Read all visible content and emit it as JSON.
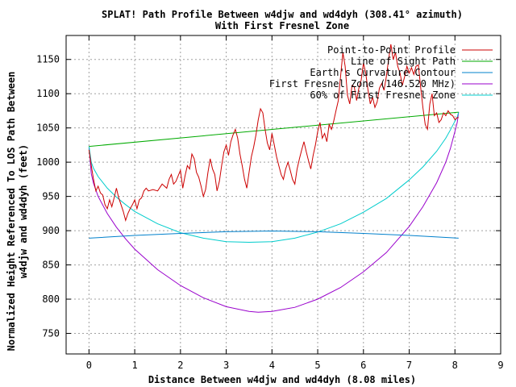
{
  "chart_data": {
    "type": "line",
    "title_line1": "SPLAT! Path Profile Between w4djw and wd4dyh (308.41° azimuth)",
    "title_line2": "With First Fresnel Zone",
    "xlabel": "Distance Between w4djw and wd4dyh (8.08 miles)",
    "ylabel_line1": "Normalized Height Referenced To LOS Path Between",
    "ylabel_line2": "w4djw and wd4dyh (feet)",
    "xlim": [
      -0.5,
      9
    ],
    "ylim": [
      720,
      1185
    ],
    "xticks": [
      0,
      1,
      2,
      3,
      4,
      5,
      6,
      7,
      8,
      9
    ],
    "yticks": [
      750,
      800,
      850,
      900,
      950,
      1000,
      1050,
      1100,
      1150
    ],
    "grid": true,
    "legend_position": "top-right",
    "series": [
      {
        "name": "Point-to-Point Profile",
        "color": "#cc0000",
        "points": [
          [
            0.0,
            1018
          ],
          [
            0.05,
            995
          ],
          [
            0.1,
            975
          ],
          [
            0.15,
            958
          ],
          [
            0.2,
            965
          ],
          [
            0.25,
            955
          ],
          [
            0.3,
            952
          ],
          [
            0.35,
            938
          ],
          [
            0.4,
            932
          ],
          [
            0.45,
            945
          ],
          [
            0.5,
            935
          ],
          [
            0.55,
            948
          ],
          [
            0.6,
            962
          ],
          [
            0.65,
            948
          ],
          [
            0.7,
            938
          ],
          [
            0.75,
            928
          ],
          [
            0.8,
            915
          ],
          [
            0.85,
            925
          ],
          [
            0.9,
            932
          ],
          [
            0.95,
            938
          ],
          [
            1.0,
            945
          ],
          [
            1.05,
            932
          ],
          [
            1.1,
            945
          ],
          [
            1.15,
            948
          ],
          [
            1.2,
            958
          ],
          [
            1.25,
            962
          ],
          [
            1.3,
            958
          ],
          [
            1.4,
            960
          ],
          [
            1.5,
            958
          ],
          [
            1.6,
            968
          ],
          [
            1.7,
            962
          ],
          [
            1.75,
            975
          ],
          [
            1.8,
            982
          ],
          [
            1.85,
            968
          ],
          [
            1.9,
            972
          ],
          [
            1.95,
            980
          ],
          [
            2.0,
            988
          ],
          [
            2.05,
            962
          ],
          [
            2.1,
            980
          ],
          [
            2.15,
            995
          ],
          [
            2.2,
            990
          ],
          [
            2.25,
            1012
          ],
          [
            2.3,
            1005
          ],
          [
            2.35,
            985
          ],
          [
            2.4,
            978
          ],
          [
            2.45,
            965
          ],
          [
            2.5,
            950
          ],
          [
            2.55,
            960
          ],
          [
            2.6,
            985
          ],
          [
            2.65,
            1005
          ],
          [
            2.7,
            990
          ],
          [
            2.75,
            982
          ],
          [
            2.8,
            958
          ],
          [
            2.85,
            972
          ],
          [
            2.9,
            995
          ],
          [
            2.95,
            1015
          ],
          [
            3.0,
            1025
          ],
          [
            3.05,
            1010
          ],
          [
            3.1,
            1030
          ],
          [
            3.15,
            1040
          ],
          [
            3.2,
            1048
          ],
          [
            3.25,
            1035
          ],
          [
            3.3,
            1012
          ],
          [
            3.35,
            995
          ],
          [
            3.4,
            975
          ],
          [
            3.45,
            962
          ],
          [
            3.5,
            985
          ],
          [
            3.55,
            1008
          ],
          [
            3.6,
            1022
          ],
          [
            3.65,
            1040
          ],
          [
            3.7,
            1062
          ],
          [
            3.75,
            1078
          ],
          [
            3.8,
            1072
          ],
          [
            3.85,
            1048
          ],
          [
            3.9,
            1028
          ],
          [
            3.95,
            1018
          ],
          [
            4.0,
            1042
          ],
          [
            4.05,
            1025
          ],
          [
            4.1,
            1008
          ],
          [
            4.15,
            995
          ],
          [
            4.2,
            982
          ],
          [
            4.25,
            975
          ],
          [
            4.3,
            990
          ],
          [
            4.35,
            1000
          ],
          [
            4.4,
            988
          ],
          [
            4.45,
            975
          ],
          [
            4.5,
            968
          ],
          [
            4.55,
            990
          ],
          [
            4.6,
            1005
          ],
          [
            4.65,
            1018
          ],
          [
            4.7,
            1030
          ],
          [
            4.75,
            1015
          ],
          [
            4.8,
            1002
          ],
          [
            4.85,
            990
          ],
          [
            4.9,
            1010
          ],
          [
            4.95,
            1025
          ],
          [
            5.0,
            1045
          ],
          [
            5.05,
            1058
          ],
          [
            5.1,
            1035
          ],
          [
            5.15,
            1042
          ],
          [
            5.2,
            1030
          ],
          [
            5.25,
            1055
          ],
          [
            5.3,
            1048
          ],
          [
            5.35,
            1060
          ],
          [
            5.4,
            1075
          ],
          [
            5.45,
            1090
          ],
          [
            5.5,
            1125
          ],
          [
            5.55,
            1160
          ],
          [
            5.6,
            1140
          ],
          [
            5.65,
            1098
          ],
          [
            5.7,
            1085
          ],
          [
            5.75,
            1112
          ],
          [
            5.8,
            1110
          ],
          [
            5.85,
            1090
          ],
          [
            5.9,
            1108
          ],
          [
            5.95,
            1120
          ],
          [
            6.0,
            1145
          ],
          [
            6.05,
            1130
          ],
          [
            6.1,
            1105
          ],
          [
            6.15,
            1085
          ],
          [
            6.2,
            1095
          ],
          [
            6.25,
            1080
          ],
          [
            6.3,
            1088
          ],
          [
            6.35,
            1108
          ],
          [
            6.4,
            1115
          ],
          [
            6.45,
            1105
          ],
          [
            6.5,
            1125
          ],
          [
            6.55,
            1150
          ],
          [
            6.6,
            1172
          ],
          [
            6.65,
            1150
          ],
          [
            6.7,
            1160
          ],
          [
            6.75,
            1140
          ],
          [
            6.8,
            1130
          ],
          [
            6.85,
            1112
          ],
          [
            6.9,
            1125
          ],
          [
            6.95,
            1140
          ],
          [
            7.0,
            1130
          ],
          [
            7.05,
            1138
          ],
          [
            7.1,
            1128
          ],
          [
            7.15,
            1140
          ],
          [
            7.2,
            1142
          ],
          [
            7.25,
            1110
          ],
          [
            7.3,
            1080
          ],
          [
            7.35,
            1055
          ],
          [
            7.4,
            1048
          ],
          [
            7.45,
            1085
          ],
          [
            7.5,
            1100
          ],
          [
            7.55,
            1068
          ],
          [
            7.6,
            1072
          ],
          [
            7.65,
            1058
          ],
          [
            7.7,
            1062
          ],
          [
            7.75,
            1072
          ],
          [
            7.8,
            1068
          ],
          [
            7.85,
            1075
          ],
          [
            7.9,
            1070
          ],
          [
            7.95,
            1068
          ],
          [
            8.0,
            1062
          ],
          [
            8.05,
            1065
          ],
          [
            8.08,
            1065
          ]
        ]
      },
      {
        "name": "Line of Sight Path",
        "color": "#00aa00",
        "points": [
          [
            0,
            1023
          ],
          [
            8.08,
            1073
          ]
        ]
      },
      {
        "name": "Earth's Curvature Contour",
        "color": "#0080cc",
        "points": [
          [
            0,
            889
          ],
          [
            1,
            893
          ],
          [
            2,
            896
          ],
          [
            3,
            898.5
          ],
          [
            4,
            899.5
          ],
          [
            5,
            898.5
          ],
          [
            6,
            896
          ],
          [
            7,
            893
          ],
          [
            8.08,
            889
          ]
        ]
      },
      {
        "name": "First Fresnel Zone (146.520 MHz)",
        "color": "#9900cc",
        "points": [
          [
            0,
            1023
          ],
          [
            0.05,
            983
          ],
          [
            0.1,
            969
          ],
          [
            0.2,
            950
          ],
          [
            0.4,
            925
          ],
          [
            0.6,
            905
          ],
          [
            0.8,
            888
          ],
          [
            1.0,
            873
          ],
          [
            1.5,
            843
          ],
          [
            2.0,
            820
          ],
          [
            2.5,
            802
          ],
          [
            3.0,
            789
          ],
          [
            3.5,
            782
          ],
          [
            3.7,
            781
          ],
          [
            4.0,
            782
          ],
          [
            4.5,
            788
          ],
          [
            5.0,
            800
          ],
          [
            5.5,
            817
          ],
          [
            6.0,
            840
          ],
          [
            6.5,
            868
          ],
          [
            7.0,
            906
          ],
          [
            7.3,
            935
          ],
          [
            7.6,
            970
          ],
          [
            7.8,
            1000
          ],
          [
            7.9,
            1020
          ],
          [
            8.0,
            1045
          ],
          [
            8.05,
            1058
          ],
          [
            8.08,
            1073
          ]
        ]
      },
      {
        "name": "60% of First Fresnel Zone",
        "color": "#00cccc",
        "points": [
          [
            0,
            1023
          ],
          [
            0.05,
            1000
          ],
          [
            0.1,
            991
          ],
          [
            0.2,
            979
          ],
          [
            0.4,
            962
          ],
          [
            0.6,
            949
          ],
          [
            0.8,
            938
          ],
          [
            1.0,
            928
          ],
          [
            1.5,
            910
          ],
          [
            2.0,
            897
          ],
          [
            2.5,
            889
          ],
          [
            3.0,
            884
          ],
          [
            3.5,
            883
          ],
          [
            4.0,
            884
          ],
          [
            4.5,
            889
          ],
          [
            5.0,
            898
          ],
          [
            5.5,
            910
          ],
          [
            6.0,
            927
          ],
          [
            6.5,
            947
          ],
          [
            7.0,
            974
          ],
          [
            7.3,
            993
          ],
          [
            7.6,
            1016
          ],
          [
            7.8,
            1035
          ],
          [
            7.9,
            1047
          ],
          [
            8.0,
            1060
          ],
          [
            8.05,
            1066
          ],
          [
            8.08,
            1073
          ]
        ]
      }
    ]
  }
}
